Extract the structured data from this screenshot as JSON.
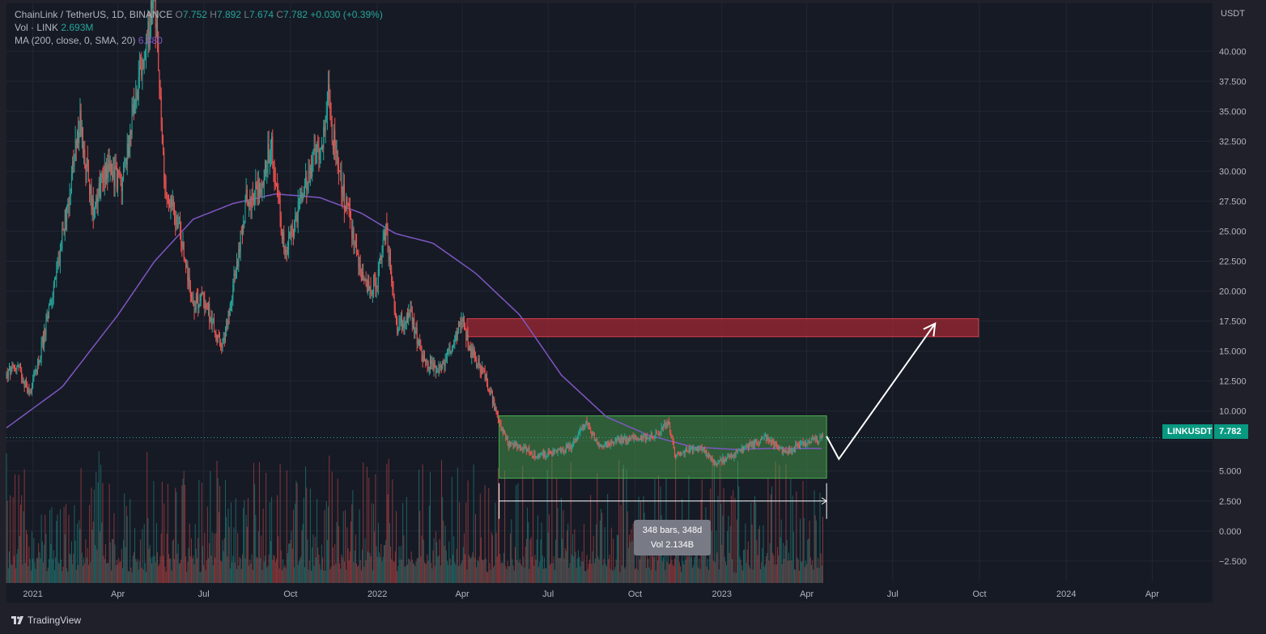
{
  "legend": {
    "symbol_line": "ChainLink / TetherUS, 1D, BINANCE",
    "open_label": "O",
    "open": "7.752",
    "high_label": "H",
    "high": "7.892",
    "low_label": "L",
    "low": "7.674",
    "close_label": "C",
    "close": "7.782",
    "change": "+0.030 (+0.39%)",
    "vol_label": "Vol · LINK",
    "vol_value": "2.693M",
    "ma_label": "MA (200, close, 0, SMA, 20)",
    "ma_value": "6.880"
  },
  "price_badge": {
    "symbol": "LINKUSDT",
    "price": "7.782"
  },
  "measure_tooltip": {
    "line1": "348 bars, 348d",
    "line2": "Vol 2.134B"
  },
  "footer": {
    "brand": "TradingView"
  },
  "colors": {
    "background": "#161a25",
    "grid": "#232634",
    "up": "#26a69a",
    "down": "#ef5350",
    "ma": "#7e57c2",
    "range_box": "#4caf50",
    "target_box": "#b22833",
    "badge": "#089981"
  },
  "chart_data": {
    "type": "candlestick",
    "symbol": "ChainLink / TetherUS",
    "exchange": "BINANCE",
    "interval": "1D",
    "currency": "USDT",
    "y_axis": {
      "title": "USDT",
      "ticks": [
        40,
        37.5,
        35,
        32.5,
        30,
        27.5,
        25,
        22.5,
        20,
        17.5,
        15,
        12.5,
        10,
        7.5,
        5,
        2.5,
        0,
        -2.5
      ],
      "tick_labels": [
        "40.000",
        "37.500",
        "35.000",
        "32.500",
        "30.000",
        "27.500",
        "25.000",
        "22.500",
        "20.000",
        "17.500",
        "15.000",
        "12.500",
        "10.000",
        "",
        "5.000",
        "2.500",
        "0.000",
        "−2.500"
      ],
      "range": [
        -4.2,
        44.0
      ]
    },
    "x_axis": {
      "ticks": [
        "2021-01-01",
        "2021-04-01",
        "2021-07-01",
        "2021-10-01",
        "2022-01-01",
        "2022-04-01",
        "2022-07-01",
        "2022-10-01",
        "2023-01-01",
        "2023-04-01",
        "2023-07-01",
        "2023-10-01",
        "2024-01-01",
        "2024-04-01"
      ],
      "tick_labels": [
        "2021",
        "Apr",
        "Jul",
        "Oct",
        "2022",
        "Apr",
        "Jul",
        "Oct",
        "2023",
        "Apr",
        "Jul",
        "Oct",
        "2024",
        "Apr"
      ],
      "range": [
        "2020-12-04",
        "2024-06-04"
      ]
    },
    "price_path": [
      [
        "2020-12-04",
        13.0
      ],
      [
        "2020-12-15",
        13.8
      ],
      [
        "2020-12-28",
        11.5
      ],
      [
        "2021-01-08",
        14.5
      ],
      [
        "2021-01-25",
        21.0
      ],
      [
        "2021-02-10",
        29.0
      ],
      [
        "2021-02-20",
        34.0
      ],
      [
        "2021-03-05",
        27.0
      ],
      [
        "2021-03-20",
        30.5
      ],
      [
        "2021-04-05",
        29.0
      ],
      [
        "2021-04-20",
        36.0
      ],
      [
        "2021-05-01",
        40.0
      ],
      [
        "2021-05-10",
        45.0
      ],
      [
        "2021-05-20",
        29.0
      ],
      [
        "2021-06-05",
        25.0
      ],
      [
        "2021-06-20",
        19.0
      ],
      [
        "2021-07-01",
        19.5
      ],
      [
        "2021-07-20",
        15.0
      ],
      [
        "2021-08-05",
        22.0
      ],
      [
        "2021-08-15",
        27.5
      ],
      [
        "2021-09-01",
        29.0
      ],
      [
        "2021-09-10",
        32.5
      ],
      [
        "2021-09-25",
        23.0
      ],
      [
        "2021-10-10",
        27.0
      ],
      [
        "2021-10-25",
        31.0
      ],
      [
        "2021-11-05",
        33.0
      ],
      [
        "2021-11-10",
        36.0
      ],
      [
        "2021-11-20",
        30.0
      ],
      [
        "2021-12-05",
        25.0
      ],
      [
        "2021-12-20",
        20.0
      ],
      [
        "2022-01-01",
        21.0
      ],
      [
        "2022-01-10",
        25.0
      ],
      [
        "2022-01-22",
        17.0
      ],
      [
        "2022-02-05",
        18.0
      ],
      [
        "2022-02-20",
        14.0
      ],
      [
        "2022-03-10",
        13.5
      ],
      [
        "2022-03-20",
        15.5
      ],
      [
        "2022-04-01",
        17.5
      ],
      [
        "2022-04-10",
        15.0
      ],
      [
        "2022-04-25",
        13.0
      ],
      [
        "2022-05-10",
        9.0
      ],
      [
        "2022-05-20",
        7.2
      ],
      [
        "2022-06-05",
        7.0
      ],
      [
        "2022-06-20",
        6.2
      ],
      [
        "2022-07-05",
        6.5
      ],
      [
        "2022-07-25",
        7.0
      ],
      [
        "2022-08-10",
        9.0
      ],
      [
        "2022-08-25",
        7.0
      ],
      [
        "2022-09-10",
        7.5
      ],
      [
        "2022-10-01",
        7.8
      ],
      [
        "2022-10-25",
        8.0
      ],
      [
        "2022-11-05",
        9.2
      ],
      [
        "2022-11-12",
        6.5
      ],
      [
        "2022-11-25",
        6.7
      ],
      [
        "2022-12-10",
        7.0
      ],
      [
        "2022-12-25",
        5.6
      ],
      [
        "2023-01-10",
        6.2
      ],
      [
        "2023-02-01",
        7.2
      ],
      [
        "2023-02-15",
        7.8
      ],
      [
        "2023-03-10",
        6.5
      ],
      [
        "2023-03-25",
        7.2
      ],
      [
        "2023-04-10",
        7.6
      ],
      [
        "2023-04-18",
        7.78
      ]
    ],
    "ma200_path": [
      [
        "2020-12-04",
        8.6
      ],
      [
        "2021-02-01",
        12.0
      ],
      [
        "2021-04-01",
        18.0
      ],
      [
        "2021-05-10",
        22.5
      ],
      [
        "2021-06-20",
        26.0
      ],
      [
        "2021-08-01",
        27.3
      ],
      [
        "2021-09-15",
        28.1
      ],
      [
        "2021-11-01",
        27.8
      ],
      [
        "2021-12-15",
        26.5
      ],
      [
        "2022-01-20",
        24.8
      ],
      [
        "2022-03-01",
        24.0
      ],
      [
        "2022-04-15",
        21.5
      ],
      [
        "2022-06-01",
        18.0
      ],
      [
        "2022-07-15",
        13.0
      ],
      [
        "2022-09-01",
        9.5
      ],
      [
        "2022-10-15",
        8.0
      ],
      [
        "2022-12-01",
        7.0
      ],
      [
        "2023-01-15",
        6.8
      ],
      [
        "2023-03-01",
        6.9
      ],
      [
        "2023-04-18",
        6.88
      ]
    ],
    "volume_scale_max": 3.4,
    "ma": {
      "period": 200,
      "source": "close",
      "type": "SMA",
      "value": 6.88
    },
    "last": {
      "open": 7.752,
      "high": 7.892,
      "low": 7.674,
      "close": 7.782,
      "change": 0.03,
      "change_pct": 0.39
    },
    "annotations": {
      "range_box": {
        "start": "2022-05-10",
        "end": "2023-04-22",
        "low": 4.4,
        "high": 9.6
      },
      "target_box": {
        "start": "2022-04-06",
        "end": "2023-09-30",
        "low": 16.2,
        "high": 17.7
      },
      "projection_path": [
        [
          "2023-04-22",
          7.9
        ],
        [
          "2023-05-05",
          6.0
        ],
        [
          "2023-08-15",
          17.3
        ]
      ],
      "date_range_measure": {
        "start": "2022-05-10",
        "end": "2023-04-22",
        "price": 2.5,
        "bars": 348,
        "days": 348,
        "volume": "2.134B"
      }
    }
  }
}
